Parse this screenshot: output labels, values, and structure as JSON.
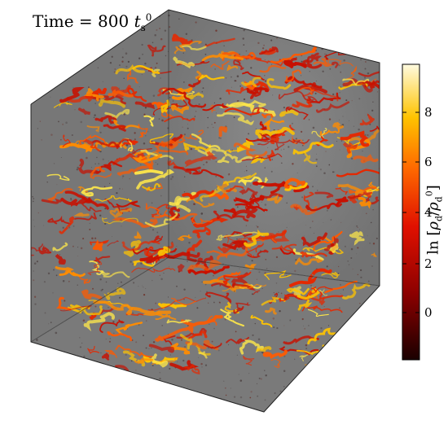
{
  "title": {
    "prefix": "Time",
    "equals": "=",
    "value": "800",
    "unit_symbol": "t",
    "unit_sub": "s",
    "unit_sup": "0"
  },
  "colorbar": {
    "label_prefix": "ln",
    "label_num": "ρ",
    "label_num_sub": "d",
    "label_den": "ρ",
    "label_den_sub": "d",
    "label_den_sup": "0",
    "ticks": [
      "0",
      "2",
      "4",
      "6",
      "8"
    ],
    "colors": {
      "dark": "#1a0000",
      "red": "#d40000",
      "orange": "#ff7a00",
      "yellow": "#ffe41a",
      "white": "#fffbe0"
    }
  },
  "cube": {
    "face_color": "#7c7c7c",
    "filament_colors": [
      "#c81000",
      "#e62800",
      "#ff5a00",
      "#ff8c00",
      "#ffc400",
      "#ffe84a"
    ]
  }
}
